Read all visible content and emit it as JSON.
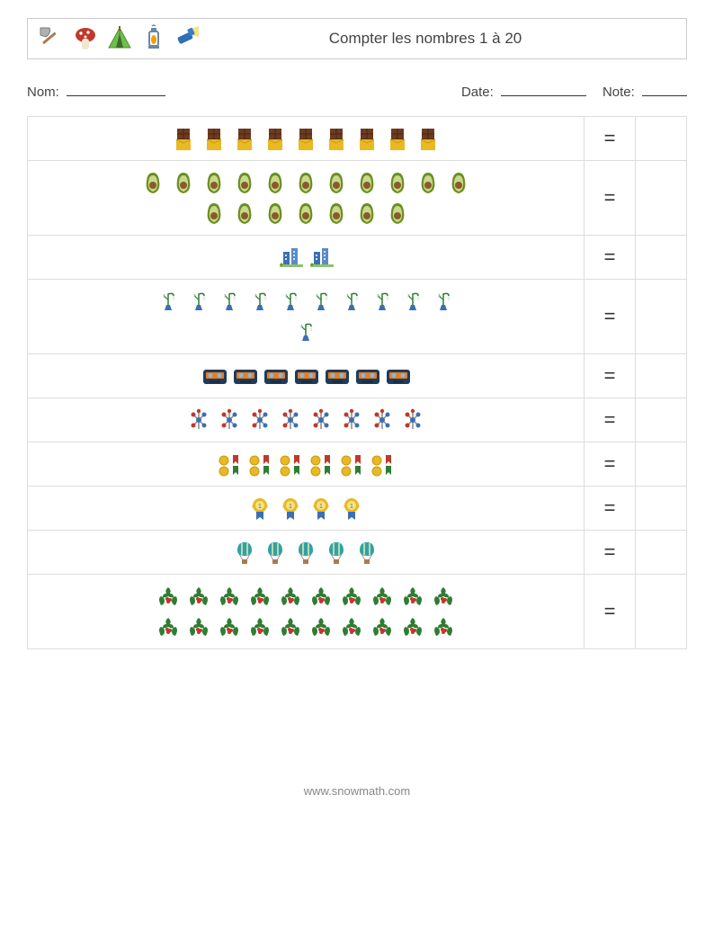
{
  "header": {
    "title": "Compter les nombres 1 à 20",
    "icons": [
      "axe",
      "mushroom",
      "tent",
      "lantern",
      "flashlight"
    ]
  },
  "info": {
    "name_label": "Nom:",
    "name_blank_width": 110,
    "date_label": "Date:",
    "date_blank_width": 95,
    "note_label": "Note:",
    "note_blank_width": 50
  },
  "rows": [
    {
      "icon": "chocolate",
      "count": 9,
      "rows_of": [
        9
      ],
      "equals": "="
    },
    {
      "icon": "avocado",
      "count": 18,
      "rows_of": [
        11,
        7
      ],
      "equals": "="
    },
    {
      "icon": "buildings",
      "count": 2,
      "rows_of": [
        2
      ],
      "equals": "="
    },
    {
      "icon": "snowdrop",
      "count": 11,
      "rows_of": [
        10,
        1
      ],
      "equals": "="
    },
    {
      "icon": "cassette",
      "count": 7,
      "rows_of": [
        7
      ],
      "equals": "="
    },
    {
      "icon": "molecule",
      "count": 8,
      "rows_of": [
        8
      ],
      "equals": "="
    },
    {
      "icon": "medals",
      "count": 6,
      "rows_of": [
        6
      ],
      "equals": "="
    },
    {
      "icon": "award",
      "count": 4,
      "rows_of": [
        4
      ],
      "equals": "="
    },
    {
      "icon": "balloon",
      "count": 5,
      "rows_of": [
        5
      ],
      "equals": "="
    },
    {
      "icon": "holly",
      "count": 20,
      "rows_of": [
        10,
        10
      ],
      "equals": "="
    }
  ],
  "footer": "www.snowmath.com",
  "colors": {
    "border": "#dddddd",
    "header_border": "#cccccc",
    "text": "#333333",
    "footer_text": "#888888"
  },
  "icon_colors": {
    "axe": {
      "handle": "#a97c50",
      "head": "#b0b0b0"
    },
    "mushroom": {
      "cap": "#c0392b",
      "stem": "#f0e6d2",
      "dots": "#ffffff"
    },
    "tent": {
      "body": "#6fbf4b",
      "pole": "#8b5a2b"
    },
    "lantern": {
      "body": "#6b87a3",
      "flame": "#f39c12"
    },
    "flashlight": {
      "body": "#2f6fb3",
      "beam": "#f7dc6f"
    },
    "chocolate": {
      "bar": "#6e3b1f",
      "wrap": "#e8b923"
    },
    "avocado": {
      "skin": "#6b8e23",
      "pit": "#8b5a2b"
    },
    "buildings": {
      "bldg": "#3b6fb3",
      "ground": "#8fbf6f"
    },
    "snowdrop": {
      "pot": "#3b6fb3",
      "stem": "#2e7d32",
      "flower": "#ffffff"
    },
    "cassette": {
      "body": "#1f3b5c",
      "label": "#e67e22",
      "reel": "#8bb7d8"
    },
    "molecule": {
      "a": "#c0392b",
      "b": "#3b6fb3",
      "bond": "#888888"
    },
    "medals": {
      "gold": "#e8b923",
      "ribbon1": "#c0392b",
      "ribbon2": "#2e7d32",
      "ribbon3": "#3b6fb3"
    },
    "award": {
      "gold": "#e8b923",
      "ribbon": "#3b6fb3",
      "center": "#f4e28c"
    },
    "balloon": {
      "env": "#2fa3a3",
      "basket": "#a97c50",
      "stripe": "#f0e6b0"
    },
    "holly": {
      "leaf": "#2e7d32",
      "berry": "#c0392b"
    }
  }
}
